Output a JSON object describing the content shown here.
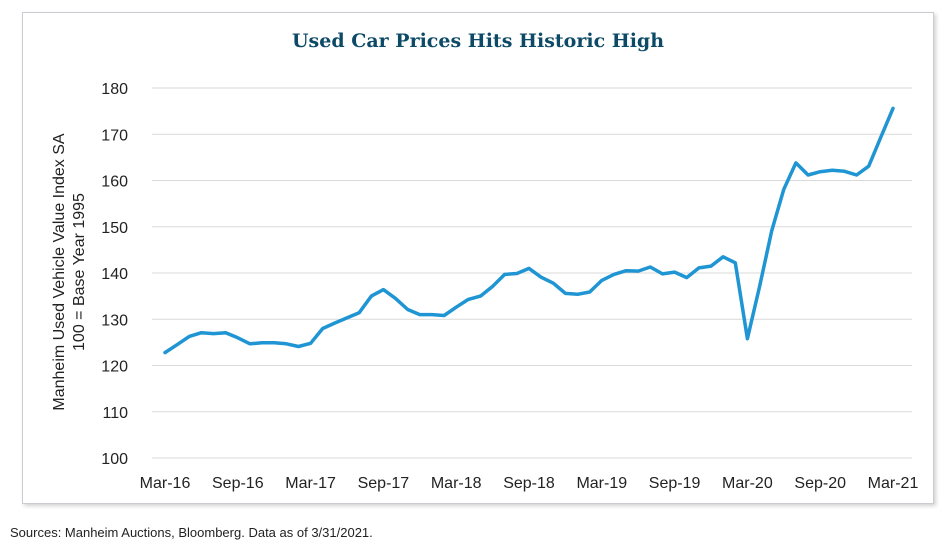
{
  "source_text": "Sources: Manheim Auctions, Bloomberg. Data as of 3/31/2021.",
  "colors": {
    "line": "#1f95d3",
    "title": "#0d4a67",
    "grid": "#d9d9d9"
  },
  "chart_data": {
    "type": "line",
    "title": "Used Car Prices Hits Historic High",
    "ylabel_line1": "Manheim Used Vehicle Value Index SA",
    "ylabel_line2": "100 = Base Year 1995",
    "xlabel": "",
    "ylim": [
      100,
      180
    ],
    "yticks": [
      100,
      110,
      120,
      130,
      140,
      150,
      160,
      170,
      180
    ],
    "xtick_labels": [
      "Mar-16",
      "Sep-16",
      "Mar-17",
      "Sep-17",
      "Mar-18",
      "Sep-18",
      "Mar-19",
      "Sep-19",
      "Mar-20",
      "Sep-20",
      "Mar-21"
    ],
    "grid": true,
    "legend": "none",
    "series": [
      {
        "x": [
          "Mar-16",
          "Apr-16",
          "May-16",
          "Jun-16",
          "Jul-16",
          "Aug-16",
          "Sep-16",
          "Oct-16",
          "Nov-16",
          "Dec-16",
          "Jan-17",
          "Feb-17",
          "Mar-17",
          "Apr-17",
          "May-17",
          "Jun-17",
          "Jul-17",
          "Aug-17",
          "Sep-17",
          "Oct-17",
          "Nov-17",
          "Dec-17",
          "Jan-18",
          "Feb-18",
          "Mar-18",
          "Apr-18",
          "May-18",
          "Jun-18",
          "Jul-18",
          "Aug-18",
          "Sep-18",
          "Oct-18",
          "Nov-18",
          "Dec-18",
          "Jan-19",
          "Feb-19",
          "Mar-19",
          "Apr-19",
          "May-19",
          "Jun-19",
          "Jul-19",
          "Aug-19",
          "Sep-19",
          "Oct-19",
          "Nov-19",
          "Dec-19",
          "Jan-20",
          "Feb-20",
          "Mar-20",
          "Apr-20",
          "May-20",
          "Jun-20",
          "Jul-20",
          "Aug-20",
          "Sep-20",
          "Oct-20",
          "Nov-20",
          "Dec-20",
          "Jan-21",
          "Feb-21",
          "Mar-21"
        ],
        "values": [
          122.8,
          124.5,
          126.3,
          127.1,
          126.9,
          127.1,
          126.0,
          124.7,
          124.9,
          124.9,
          124.7,
          124.1,
          124.8,
          128.0,
          129.2,
          130.3,
          131.4,
          135.0,
          136.4,
          134.5,
          132.1,
          131.0,
          131.0,
          130.8,
          132.6,
          134.3,
          135.0,
          137.1,
          139.7,
          139.9,
          141.0,
          139.1,
          137.8,
          135.6,
          135.4,
          135.9,
          138.4,
          139.7,
          140.5,
          140.4,
          141.3,
          139.8,
          140.2,
          139.0,
          141.1,
          141.5,
          143.5,
          142.2,
          125.8,
          137.0,
          149.1,
          158.1,
          163.8,
          161.2,
          161.9,
          162.2,
          162.0,
          161.2,
          163.1,
          169.4,
          175.6
        ]
      }
    ]
  }
}
